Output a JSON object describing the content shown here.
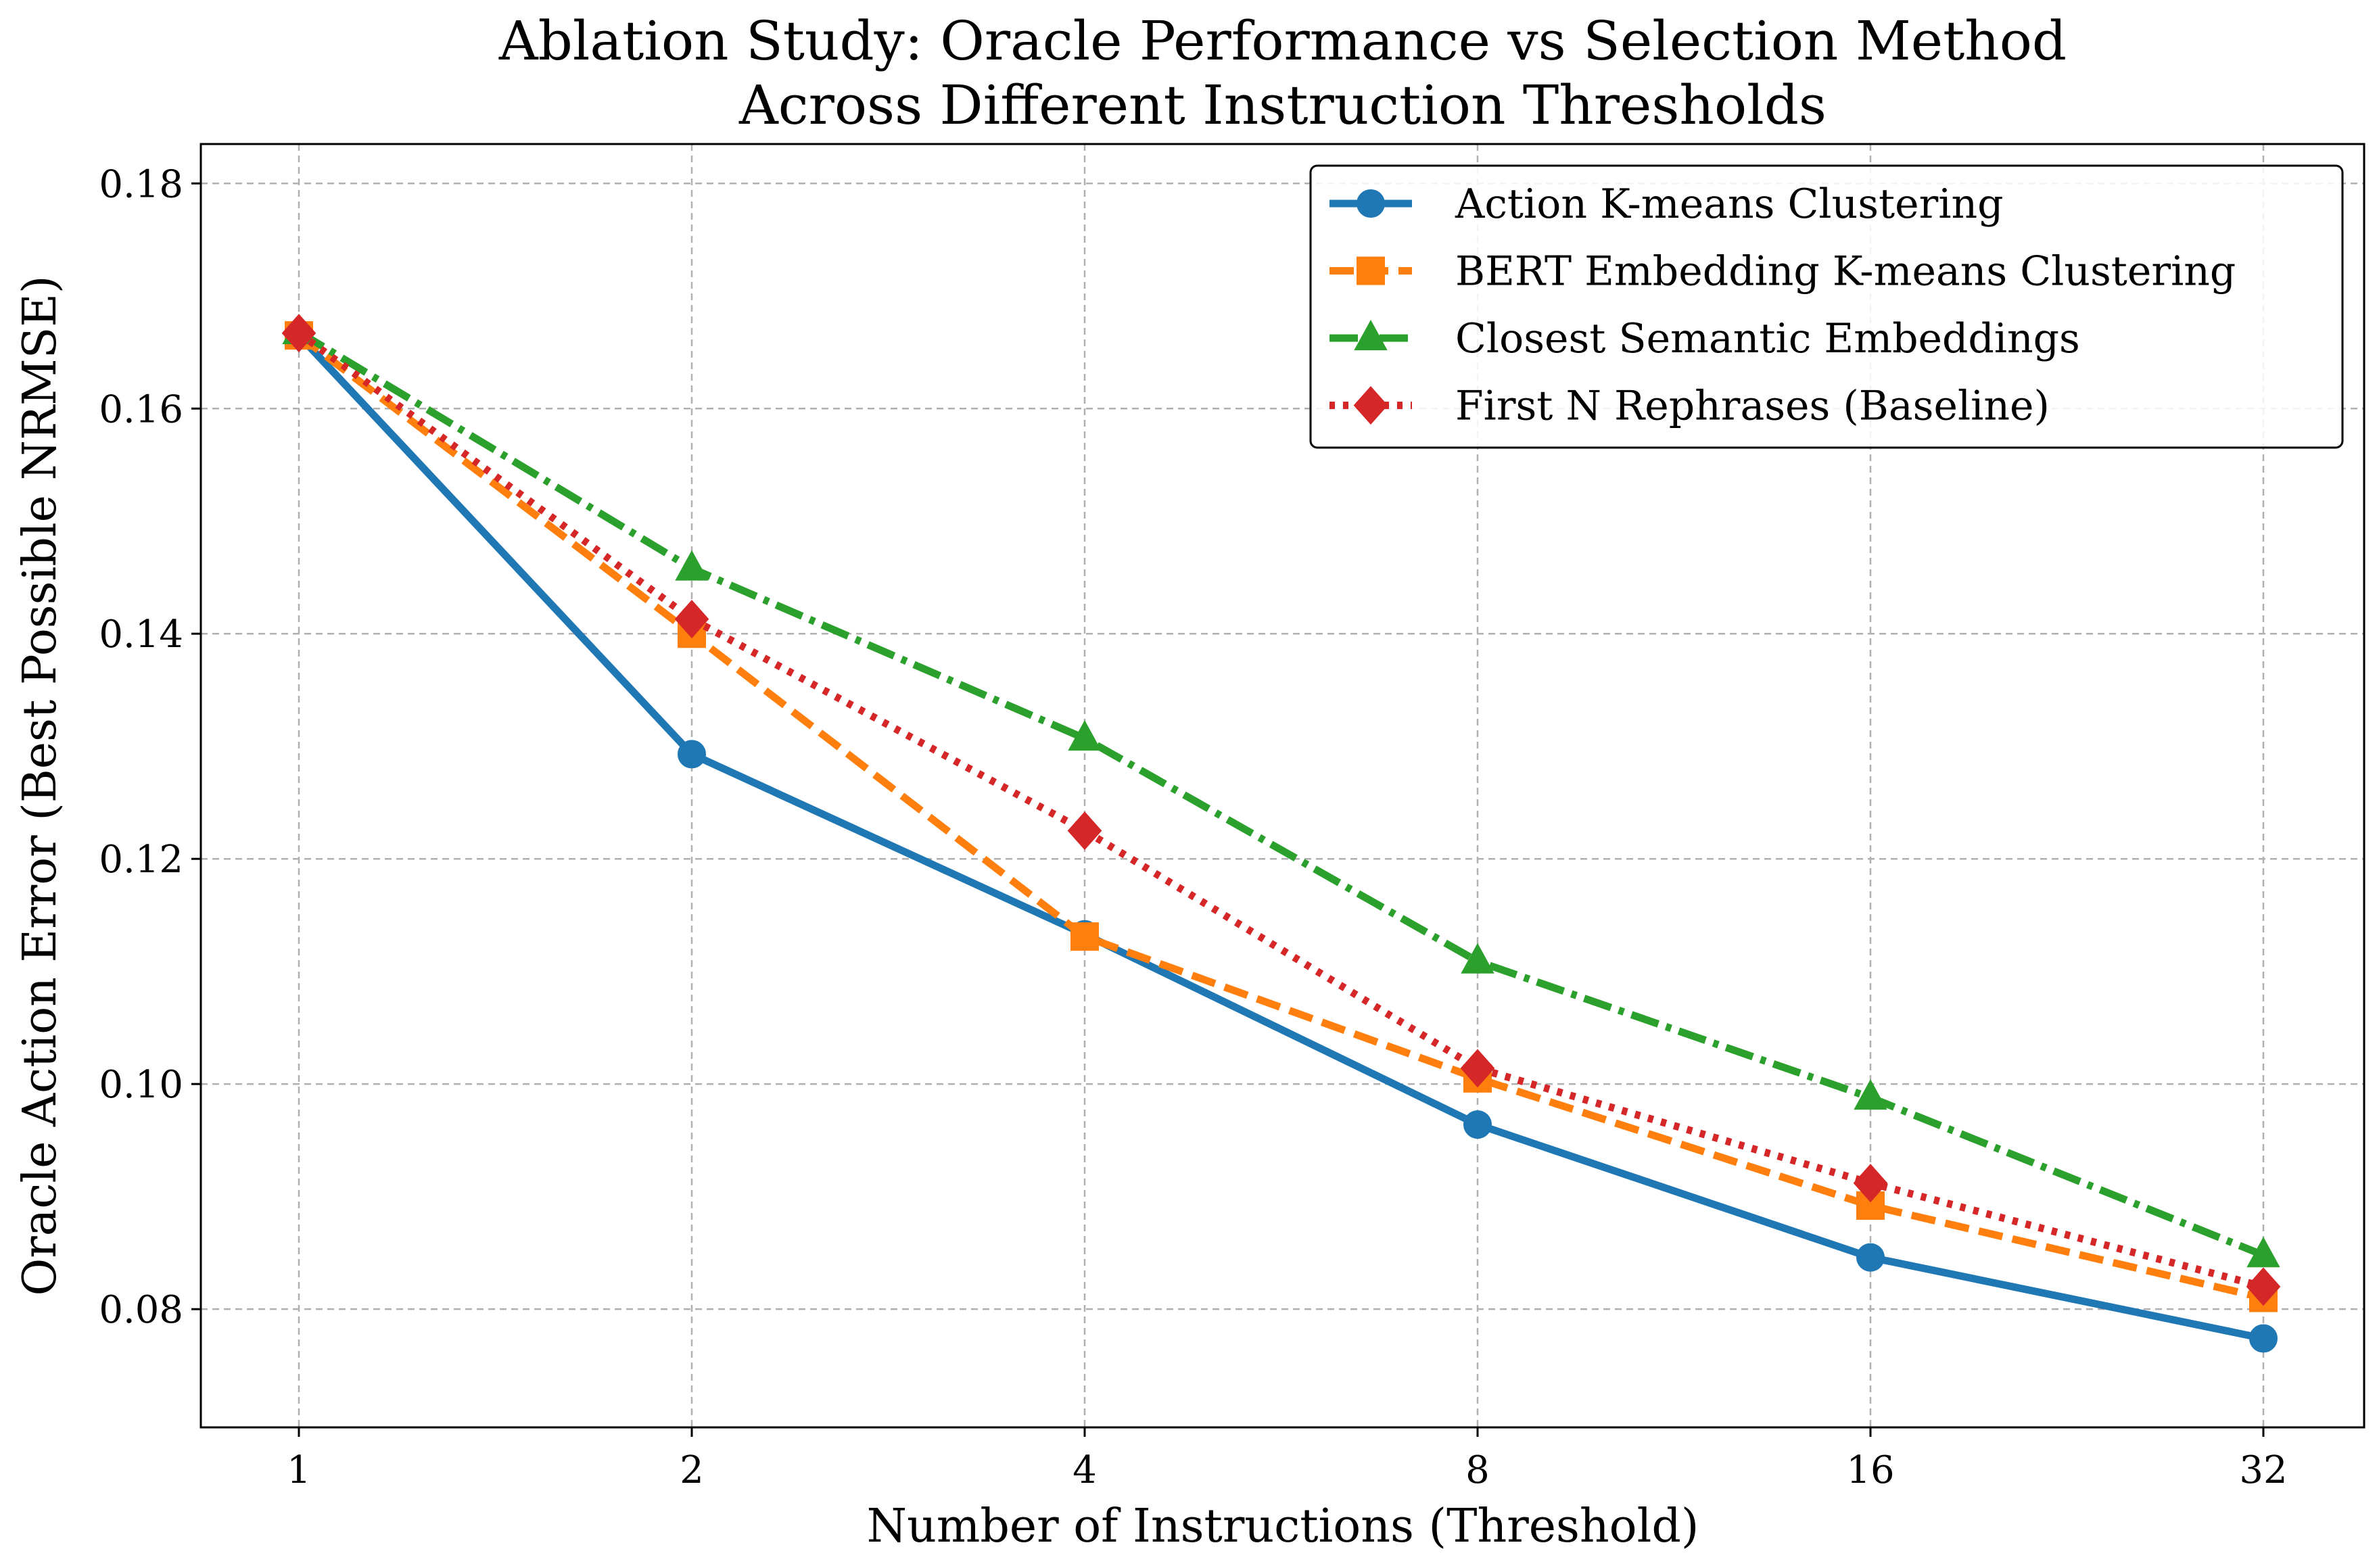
{
  "chart_data": {
    "type": "line",
    "title": [
      "Ablation Study: Oracle Performance vs Selection Method",
      "Across Different Instruction Thresholds"
    ],
    "xlabel": "Number of Instructions (Threshold)",
    "ylabel": "Oracle Action Error (Best Possible NRMSE)",
    "x": [
      1,
      2,
      4,
      8,
      16,
      32
    ],
    "x_tick_labels": [
      "1",
      "2",
      "4",
      "8",
      "16",
      "32"
    ],
    "x_scale": "log2",
    "ylim": [
      0.0695,
      0.1835
    ],
    "yticks": [
      0.08,
      0.1,
      0.12,
      0.14,
      0.16,
      0.18
    ],
    "y_tick_labels": [
      "0.08",
      "0.10",
      "0.12",
      "0.14",
      "0.16",
      "0.18"
    ],
    "grid": true,
    "legend_position": "top-right",
    "series": [
      {
        "name": "Action K-means Clustering",
        "color": "#1f77b4",
        "dash": "solid",
        "marker": "circle",
        "values": [
          0.1665,
          0.1293,
          0.1133,
          0.0964,
          0.0846,
          0.0774
        ]
      },
      {
        "name": "BERT Embedding K-means Clustering",
        "color": "#ff7f0e",
        "dash": "dashed",
        "marker": "square",
        "values": [
          0.1665,
          0.14,
          0.1131,
          0.1005,
          0.0892,
          0.081
        ]
      },
      {
        "name": "Closest Semantic Embeddings",
        "color": "#2ca02c",
        "dash": "dashdot",
        "marker": "triangle",
        "values": [
          0.1668,
          0.1458,
          0.1307,
          0.1109,
          0.0988,
          0.0848
        ]
      },
      {
        "name": "First N Rephrases (Baseline)",
        "color": "#d62728",
        "dash": "dotted",
        "marker": "diamond",
        "values": [
          0.1667,
          0.1413,
          0.1225,
          0.1014,
          0.0912,
          0.082
        ]
      }
    ]
  }
}
